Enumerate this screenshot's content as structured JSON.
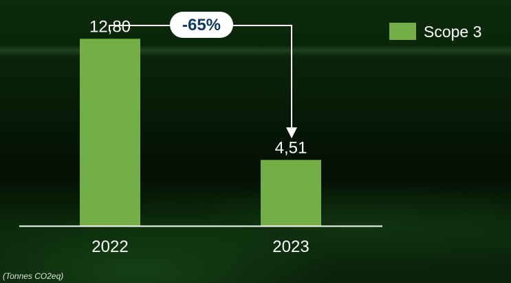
{
  "chart_data": {
    "type": "bar",
    "categories": [
      "2022",
      "2023"
    ],
    "series": [
      {
        "name": "Scope 3",
        "values": [
          12.8,
          4.51
        ],
        "value_labels": [
          "12,80",
          "4,51"
        ]
      }
    ],
    "legend": "top-right",
    "annotation": "-65%",
    "unit_note": "(Tonnes CO2eq)",
    "ylim": [
      0,
      15.5
    ],
    "grid": false,
    "colors": {
      "bar": "#74ae46",
      "text": "#ffffff",
      "annotation_text": "#0c3a63"
    }
  }
}
